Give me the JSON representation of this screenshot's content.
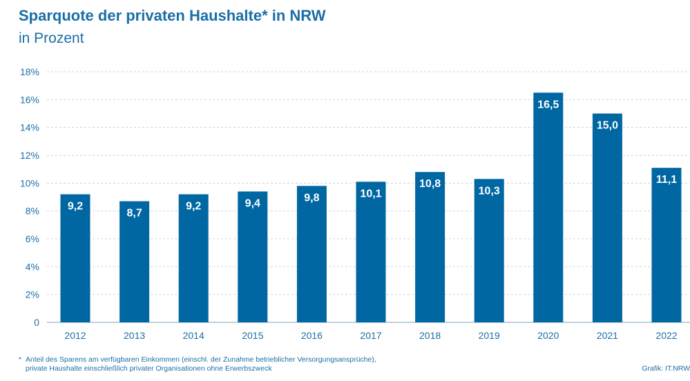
{
  "chart_data": {
    "type": "bar",
    "title": "Sparquote der privaten Haushalte* in NRW",
    "subtitle": "in Prozent",
    "categories": [
      "2012",
      "2013",
      "2014",
      "2015",
      "2016",
      "2017",
      "2018",
      "2019",
      "2020",
      "2021",
      "2022"
    ],
    "values": [
      9.2,
      8.7,
      9.2,
      9.4,
      9.8,
      10.1,
      10.8,
      10.3,
      16.5,
      15.0,
      11.1
    ],
    "value_labels": [
      "9,2",
      "8,7",
      "9,2",
      "9,4",
      "9,8",
      "10,1",
      "10,8",
      "10,3",
      "16,5",
      "15,0",
      "11,1"
    ],
    "y_ticks": [
      0,
      2,
      4,
      6,
      8,
      10,
      12,
      14,
      16,
      18
    ],
    "y_tick_labels": [
      "0",
      "2%",
      "4%",
      "6%",
      "8%",
      "10%",
      "12%",
      "14%",
      "16%",
      "18%"
    ],
    "ylim": [
      0,
      18
    ],
    "xlabel": "",
    "ylabel": "",
    "grid": true,
    "bar_color": "#0067a3",
    "text_color": "#1a6ea6"
  },
  "footnote": {
    "marker": "*",
    "line1": "Anteil des Sparens am verfügbaren Einkommen (einschl. der Zunahme betrieblicher Versorgungsansprüche),",
    "line2": "private Haushalte einschließlich privater Organisationen ohne Erwerbszweck"
  },
  "source": "Grafik: IT.NRW"
}
